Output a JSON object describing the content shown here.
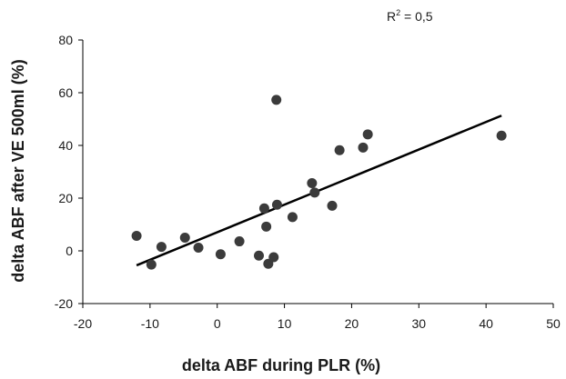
{
  "chart_data": {
    "type": "scatter",
    "xlabel": "delta ABF during PLR (%)",
    "ylabel": "delta ABF after VE 500ml (%)",
    "annotation": {
      "r_letter": "R",
      "r_exponent": "2",
      "r_value": " = 0,5"
    },
    "xlim": [
      -20,
      50
    ],
    "ylim": [
      -20,
      80
    ],
    "xticks": [
      -20,
      -10,
      0,
      10,
      20,
      30,
      40,
      50
    ],
    "yticks": [
      -20,
      0,
      20,
      40,
      60,
      80
    ],
    "grid": false,
    "points": [
      {
        "x": -12,
        "y": 5.7
      },
      {
        "x": -9.8,
        "y": -5.2
      },
      {
        "x": -8.3,
        "y": 1.5
      },
      {
        "x": -4.8,
        "y": 5.0
      },
      {
        "x": -2.8,
        "y": 1.2
      },
      {
        "x": 0.5,
        "y": -1.3
      },
      {
        "x": 3.3,
        "y": 3.6
      },
      {
        "x": 6.2,
        "y": -1.8
      },
      {
        "x": 7.0,
        "y": 16.1
      },
      {
        "x": 7.3,
        "y": 9.2
      },
      {
        "x": 7.6,
        "y": -4.9
      },
      {
        "x": 8.4,
        "y": -2.4
      },
      {
        "x": 8.8,
        "y": 57.3
      },
      {
        "x": 8.9,
        "y": 17.5
      },
      {
        "x": 11.2,
        "y": 12.8
      },
      {
        "x": 14.1,
        "y": 25.7
      },
      {
        "x": 14.5,
        "y": 22.1
      },
      {
        "x": 17.1,
        "y": 17.1
      },
      {
        "x": 18.2,
        "y": 38.2
      },
      {
        "x": 21.7,
        "y": 39.2
      },
      {
        "x": 22.4,
        "y": 44.2
      },
      {
        "x": 42.3,
        "y": 43.7
      }
    ],
    "trendline": {
      "x": [
        -12,
        42.3
      ],
      "y": [
        -5.5,
        51.3
      ]
    },
    "colors": {
      "points": "#3b3b3b",
      "line": "#000000",
      "axis": "#000000"
    }
  }
}
